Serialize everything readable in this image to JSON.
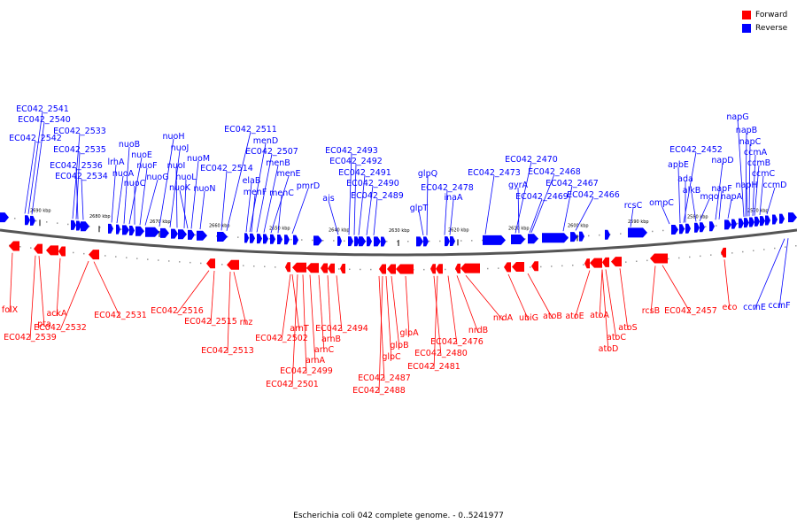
{
  "legend": {
    "forward_label": "Forward",
    "reverse_label": "Reverse",
    "forward_color": "#ff0000",
    "reverse_color": "#0000ff"
  },
  "caption": "Escherichia coli 042 complete genome. - 0..5241977",
  "ruler_ticks": [
    "2690 kbp",
    "2680 kbp",
    "2670 kbp",
    "2660 kbp",
    "2650 kbp",
    "2640 kbp",
    "2630 kbp",
    "2620 kbp",
    "2610 kbp",
    "2600 kbp",
    "2590 kbp",
    "2580 kbp",
    "2570 kbp"
  ],
  "reverse_labels": [
    "EC042_2541",
    "EC042_2540",
    "EC042_2542",
    "EC042_2533",
    "EC042_2535",
    "EC042_2536",
    "EC042_2534",
    "lrhA",
    "nuoA",
    "nuoB",
    "nuoE",
    "nuoC",
    "nuoF",
    "nuoG",
    "nuoH",
    "nuoJ",
    "nuoI",
    "nuoL",
    "nuoM",
    "nuoK",
    "nuoN",
    "EC042_2511",
    "menD",
    "EC042_2514",
    "EC042_2507",
    "elaB",
    "menB",
    "menF",
    "menE",
    "menC",
    "pmrD",
    "ais",
    "EC042_2493",
    "EC042_2492",
    "EC042_2491",
    "EC042_2490",
    "EC042_2489",
    "glpQ",
    "glpT",
    "EC042_2478",
    "inaA",
    "EC042_2473",
    "EC042_2470",
    "gyrA",
    "EC042_2468",
    "EC042_2469",
    "EC042_2467",
    "EC042_2466",
    "rcsC",
    "ompC",
    "apbE",
    "EC042_2452",
    "ada",
    "alkB",
    "mqo",
    "napD",
    "napF",
    "napA",
    "napH",
    "napG",
    "napB",
    "napC",
    "ccmA",
    "ccmB",
    "ccmC",
    "ccmD",
    "ccmE",
    "ccmF"
  ],
  "forward_labels": [
    "folX",
    "EC042_2539",
    "pta",
    "ackA",
    "EC042_2532",
    "EC042_2531",
    "EC042_2516",
    "EC042_2515",
    "EC042_2513",
    "rnz",
    "arnT",
    "EC042_2502",
    "EC042_2499",
    "EC042_2501",
    "arnA",
    "arnC",
    "arnB",
    "EC042_2494",
    "EC042_2487",
    "EC042_2488",
    "glpC",
    "glpB",
    "glpA",
    "EC042_2480",
    "EC042_2481",
    "EC042_2476",
    "nrdB",
    "nrdA",
    "ubiG",
    "atoB",
    "atoE",
    "atoA",
    "atoC",
    "atoD",
    "atoS",
    "rcsB",
    "EC042_2457",
    "eco"
  ]
}
